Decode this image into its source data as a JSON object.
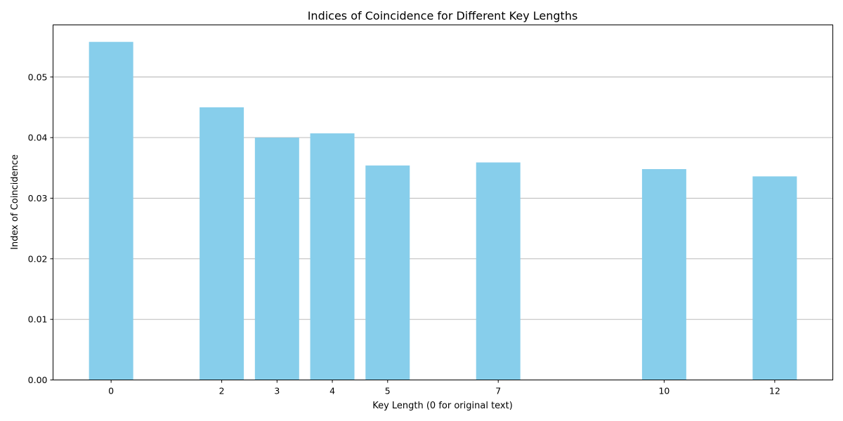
{
  "chart_data": {
    "type": "bar",
    "title": "Indices of Coincidence for Different Key Lengths",
    "xlabel": "Key Length (0 for original text)",
    "ylabel": "Index of Coincidence",
    "x": [
      0,
      2,
      3,
      4,
      5,
      7,
      10,
      12
    ],
    "values": [
      0.0558,
      0.045,
      0.04,
      0.0407,
      0.0354,
      0.0359,
      0.0348,
      0.0336
    ],
    "xlim": [
      -1.05,
      13.05
    ],
    "ylim": [
      0,
      0.0586
    ],
    "yticks": [
      0.0,
      0.01,
      0.02,
      0.03,
      0.04,
      0.05
    ],
    "ytick_labels": [
      "0.00",
      "0.01",
      "0.02",
      "0.03",
      "0.04",
      "0.05"
    ],
    "xtick_labels": [
      "0",
      "2",
      "3",
      "4",
      "5",
      "7",
      "10",
      "12"
    ],
    "grid": "y",
    "bar_color": "#87ceeb"
  }
}
